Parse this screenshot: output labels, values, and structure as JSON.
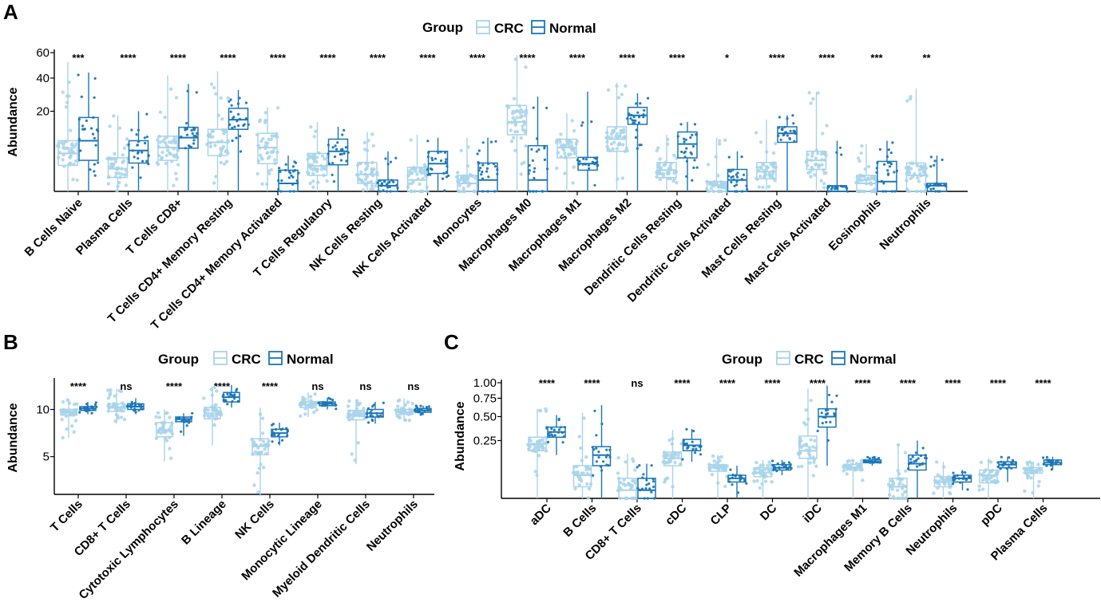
{
  "colors": {
    "crc": "#a8d4ea",
    "normal": "#1a76b8",
    "axis": "#000000"
  },
  "chart_data": [
    {
      "panel": "A",
      "type": "box",
      "scale": "sqrt",
      "title": "",
      "xlabel": "",
      "ylabel": "Abundance",
      "ylim": [
        0,
        60
      ],
      "yticks": [
        "20",
        "40",
        "60"
      ],
      "legend": {
        "title": "Group",
        "entries": [
          "CRC",
          "Normal"
        ],
        "position": "top-center"
      },
      "categories": [
        "B Cells Naive",
        "Plasma Cells",
        "T Cells CD8+",
        "T Cells CD4+ Memory Resting",
        "T Cells CD4+ Memory Activated",
        "T Cells Regulatory",
        "NK Cells Resting",
        "NK Cells Activated",
        "Monocytes",
        "Macrophages M0",
        "Macrophages M1",
        "Macrophages M2",
        "Dendritic Cells Resting",
        "Dendritic Cells Activated",
        "Mast Cells Resting",
        "Mast Cells Activated",
        "Eosinophils",
        "Neutrophils"
      ],
      "significance": [
        "***",
        "****",
        "****",
        "****",
        "****",
        "****",
        "****",
        "****",
        "****",
        "****",
        "****",
        "****",
        "****",
        "*",
        "****",
        "****",
        "***",
        "**"
      ],
      "series": [
        {
          "name": "CRC",
          "boxes": [
            [
              0,
              2.1,
              4.5,
              8,
              52
            ],
            [
              0,
              0.6,
              1.6,
              3.5,
              18
            ],
            [
              0,
              3,
              6,
              9.5,
              42
            ],
            [
              0,
              4,
              7.5,
              12,
              45
            ],
            [
              0,
              2.4,
              6,
              10.5,
              22
            ],
            [
              0,
              0.8,
              2,
              4.5,
              15
            ],
            [
              0,
              0.2,
              0.9,
              2.6,
              11
            ],
            [
              0,
              0,
              0.4,
              1.8,
              10
            ],
            [
              0,
              0,
              0.2,
              0.8,
              9
            ],
            [
              0,
              10,
              15,
              23,
              58
            ],
            [
              0,
              3.5,
              6,
              8.5,
              19
            ],
            [
              0,
              5,
              8.5,
              13,
              37
            ],
            [
              0,
              0.6,
              1.4,
              2.6,
              10
            ],
            [
              0,
              0,
              0,
              0.3,
              9
            ],
            [
              0,
              0.5,
              1.2,
              2.6,
              16
            ],
            [
              0,
              1.5,
              3,
              5,
              31
            ],
            [
              0,
              0,
              0.2,
              0.8,
              7
            ],
            [
              0,
              0,
              0.8,
              2.5,
              33
            ]
          ]
        },
        {
          "name": "Normal",
          "boxes": [
            [
              0,
              3,
              8,
              17,
              44
            ],
            [
              0,
              2.5,
              5.2,
              8,
              20
            ],
            [
              0,
              5.8,
              9,
              12.8,
              36
            ],
            [
              0,
              12,
              16,
              21.5,
              32
            ],
            [
              0,
              0,
              0.2,
              1.4,
              4
            ],
            [
              0,
              2.2,
              5,
              8.5,
              13
            ],
            [
              0,
              0,
              0.1,
              0.4,
              5
            ],
            [
              0,
              1,
              2.4,
              5,
              9
            ],
            [
              0,
              0,
              0.4,
              2.5,
              9
            ],
            [
              0,
              0,
              0.4,
              6.5,
              28
            ],
            [
              0,
              1.4,
              2.4,
              3.6,
              31
            ],
            [
              0,
              14,
              18,
              22,
              30
            ],
            [
              0,
              3.5,
              7,
              11,
              15
            ],
            [
              0,
              0,
              0.4,
              1.5,
              5
            ],
            [
              0,
              7.5,
              10.5,
              13,
              18
            ],
            [
              0,
              0,
              0,
              0.1,
              8
            ],
            [
              0,
              0,
              0.3,
              2.8,
              8
            ],
            [
              0,
              0,
              0.1,
              0.2,
              4
            ]
          ]
        }
      ]
    },
    {
      "panel": "B",
      "type": "box",
      "scale": "linear",
      "title": "",
      "xlabel": "",
      "ylabel": "Abundance",
      "ylim": [
        1,
        13
      ],
      "yticks": [
        "5",
        "10"
      ],
      "legend": {
        "title": "Group",
        "entries": [
          "CRC",
          "Normal"
        ],
        "position": "top-center"
      },
      "categories": [
        "T Cells",
        "CD8+ T Cells",
        "Cytotoxic Lymphocytes",
        "B Lineage",
        "NK Cells",
        "Monocytic Lineage",
        "Myeloid Dendritic Cells",
        "Neutrophils"
      ],
      "significance": [
        "****",
        "ns",
        "****",
        "****",
        "****",
        "ns",
        "ns",
        "ns"
      ],
      "series": [
        {
          "name": "CRC",
          "boxes": [
            [
              7,
              9.4,
              9.7,
              10,
              11.2
            ],
            [
              8.5,
              9.8,
              10.2,
              10.6,
              12.2
            ],
            [
              4.5,
              7.1,
              7.8,
              8.6,
              10
            ],
            [
              6.2,
              9,
              9.6,
              10.2,
              12.4
            ],
            [
              0.8,
              5.2,
              6.1,
              6.9,
              10.2
            ],
            [
              9.2,
              10.2,
              10.5,
              10.8,
              11.8
            ],
            [
              4.2,
              8.9,
              9.5,
              9.9,
              11
            ],
            [
              8.8,
              9.5,
              9.7,
              10,
              11.2
            ]
          ]
        },
        {
          "name": "Normal",
          "boxes": [
            [
              9.5,
              9.9,
              10.1,
              10.3,
              10.8
            ],
            [
              9.5,
              10,
              10.3,
              10.6,
              11.2
            ],
            [
              7.2,
              8.7,
              9,
              9.2,
              9.6
            ],
            [
              10.2,
              10.8,
              11.3,
              11.8,
              12.6
            ],
            [
              6.2,
              7.1,
              7.5,
              7.9,
              8.6
            ],
            [
              10,
              10.4,
              10.6,
              10.8,
              11.2
            ],
            [
              8.5,
              9.2,
              9.6,
              10,
              10.8
            ],
            [
              9.4,
              9.7,
              9.9,
              10.1,
              10.4
            ]
          ]
        }
      ]
    },
    {
      "panel": "C",
      "type": "box",
      "scale": "sqrt",
      "title": "",
      "xlabel": "",
      "ylabel": "Abundance",
      "ylim": [
        0,
        1
      ],
      "yticks": [
        "0.25",
        "0.50",
        "0.75",
        "1.00"
      ],
      "legend": {
        "title": "Group",
        "entries": [
          "CRC",
          "Normal"
        ],
        "position": "top-center"
      },
      "categories": [
        "aDC",
        "B Cells",
        "CD8+ T Cells",
        "cDC",
        "CLP",
        "DC",
        "iDC",
        "Macrophages M1",
        "Memory B Cells",
        "Neutrophils",
        "pDC",
        "Plasma Cells"
      ],
      "significance": [
        "****",
        "****",
        "ns",
        "****",
        "****",
        "****",
        "****",
        "****",
        "****",
        "****",
        "****",
        "****"
      ],
      "series": [
        {
          "name": "CRC",
          "boxes": [
            [
              0,
              0.17,
              0.22,
              0.28,
              0.6
            ],
            [
              0,
              0.01,
              0.04,
              0.08,
              0.55
            ],
            [
              0,
              0,
              0.005,
              0.03,
              0.15
            ],
            [
              0,
              0.08,
              0.12,
              0.16,
              0.35
            ],
            [
              0,
              0.055,
              0.07,
              0.085,
              0.14
            ],
            [
              0,
              0.035,
              0.05,
              0.07,
              0.11
            ],
            [
              0,
              0.12,
              0.17,
              0.29,
              0.9
            ],
            [
              0,
              0.06,
              0.07,
              0.085,
              0.11
            ],
            [
              0,
              0,
              0.01,
              0.03,
              0.22
            ],
            [
              0,
              0.01,
              0.02,
              0.035,
              0.1
            ],
            [
              0,
              0.018,
              0.04,
              0.06,
              0.12
            ],
            [
              0,
              0.048,
              0.06,
              0.07,
              0.1
            ]
          ]
        },
        {
          "name": "Normal",
          "boxes": [
            [
              0.14,
              0.28,
              0.33,
              0.38,
              0.52
            ],
            [
              0,
              0.08,
              0.14,
              0.2,
              0.65
            ],
            [
              0,
              0,
              0.005,
              0.03,
              0.09
            ],
            [
              0.1,
              0.17,
              0.21,
              0.26,
              0.36
            ],
            [
              0,
              0.02,
              0.03,
              0.04,
              0.08
            ],
            [
              0.04,
              0.06,
              0.07,
              0.085,
              0.11
            ],
            [
              0.08,
              0.38,
              0.5,
              0.6,
              0.95
            ],
            [
              0.08,
              0.095,
              0.1,
              0.11,
              0.13
            ],
            [
              0,
              0.06,
              0.09,
              0.14,
              0.25
            ],
            [
              0.005,
              0.02,
              0.03,
              0.04,
              0.06
            ],
            [
              0.02,
              0.07,
              0.085,
              0.1,
              0.13
            ],
            [
              0.06,
              0.085,
              0.095,
              0.11,
              0.13
            ]
          ]
        }
      ]
    }
  ]
}
